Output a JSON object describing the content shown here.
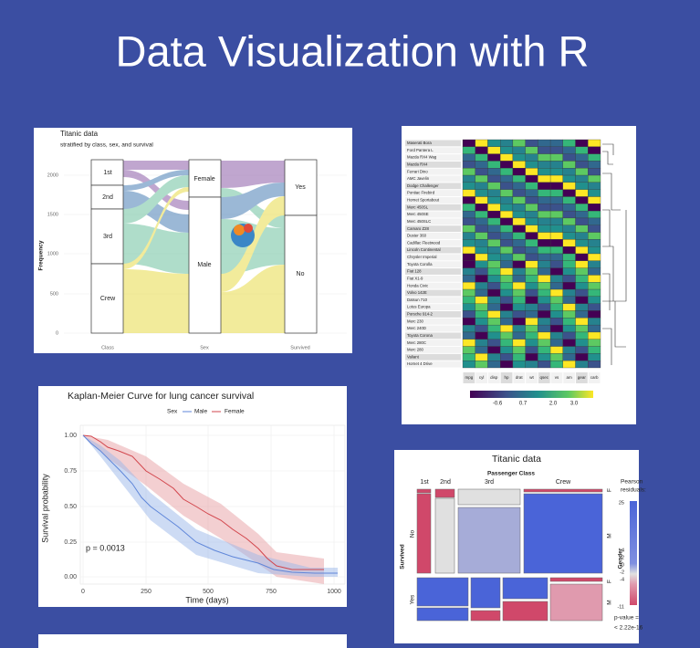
{
  "title": "Data Visualization with R",
  "alluvial": {
    "title": "Titanic data",
    "subtitle": "stratified by class, sex, and survival",
    "y_label": "Frequency",
    "yticks": [
      "0",
      "500",
      "1000",
      "1500",
      "2000"
    ],
    "x_labels": [
      "Class",
      "Sex",
      "Survived"
    ],
    "class": [
      "1st",
      "2nd",
      "3rd",
      "Crew"
    ],
    "sex": [
      "Female",
      "Male"
    ],
    "survived": [
      "Yes",
      "No"
    ]
  },
  "heatmap": {
    "rows": [
      "Maserati Bora",
      "Ford Pantera L",
      "Mazda RX4 Wag",
      "Mazda RX4",
      "Ferrari Dino",
      "AMC Javelin",
      "Dodge Challenger",
      "Pontiac Firebird",
      "Hornet Sportabout",
      "Merc 450SL",
      "Merc 450SE",
      "Merc 450SLC",
      "Camaro Z28",
      "Duster 360",
      "Cadillac Fleetwood",
      "Lincoln Continental",
      "Chrysler Imperial",
      "Toyota Corolla",
      "Fiat 128",
      "Fiat X1-9",
      "Honda Civic",
      "Volvo 142E",
      "Datsun 710",
      "Lotus Europa",
      "Porsche 914-2",
      "Merc 230",
      "Merc 240D",
      "Toyota Corona",
      "Merc 280C",
      "Merc 280",
      "Valiant",
      "Hornet 4 Drive"
    ],
    "columns": [
      "mpg",
      "cyl",
      "disp",
      "hp",
      "drat",
      "wt",
      "qsec",
      "vs",
      "am",
      "gear",
      "carb"
    ],
    "legend_ticks": [
      "-0.6",
      "0.7",
      "2.0",
      "3.0"
    ]
  },
  "km": {
    "title": "Kaplan-Meier Curve for lung cancer survival",
    "legend_title": "Sex",
    "legend": [
      "Male",
      "Female"
    ],
    "y_label": "Survival probability",
    "yticks": [
      "1.00",
      "0.75",
      "0.50",
      "0.25",
      "0.00"
    ],
    "x_label": "Time (days)",
    "xticks": [
      "0",
      "250",
      "500",
      "750",
      "1000"
    ],
    "annotation": "p = 0.0013"
  },
  "mosaic": {
    "title": "Titanic data",
    "top_label": "Passenger Class",
    "classes": [
      "1st",
      "2nd",
      "3rd",
      "Crew"
    ],
    "left_label": "Survived",
    "survived": [
      "No",
      "Yes"
    ],
    "right_label": "Gender",
    "gender": [
      "F",
      "M",
      "F",
      "M"
    ],
    "legend_title": [
      "Pearson",
      "residuals:"
    ],
    "legend_ticks": [
      "25",
      "4",
      "2",
      "0",
      "-2",
      "-4",
      "-11"
    ],
    "pvalue": [
      "p-value =",
      "< 2.22e-16"
    ]
  }
}
